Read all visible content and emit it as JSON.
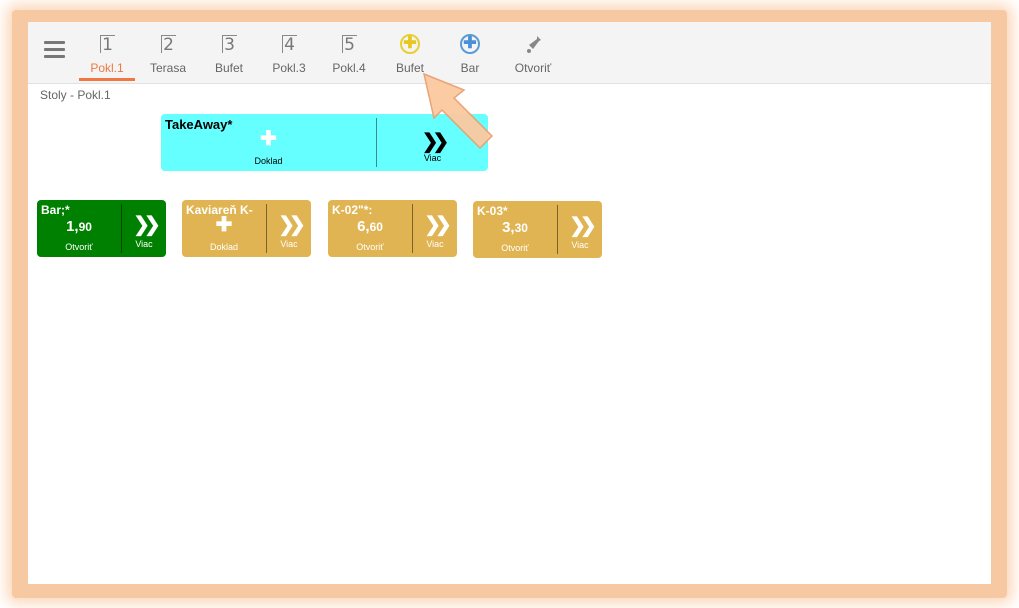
{
  "toolbar": {
    "tabs": [
      {
        "icon": "1",
        "label": "Pokl.1",
        "active": true
      },
      {
        "icon": "2",
        "label": "Terasa"
      },
      {
        "icon": "3",
        "label": "Bufet"
      },
      {
        "icon": "4",
        "label": "Pokl.3"
      },
      {
        "icon": "5",
        "label": "Pokl.4"
      },
      {
        "icon": "plus-circle-yellow",
        "label": "Bufet"
      },
      {
        "icon": "plus-circle-blue",
        "label": "Bar"
      },
      {
        "icon": "bottle-icon",
        "label": "Otvoriť"
      }
    ]
  },
  "breadcrumb": "Stoly - Pokl.1",
  "takeaway": {
    "name": "TakeAway*",
    "action": "Doklad",
    "more": "Viac",
    "color": "#66ffff"
  },
  "tables": [
    {
      "name": "Bar;*",
      "amount_int": "1,",
      "amount_dec": "90",
      "action": "Otvoriť",
      "more": "Viac",
      "color": "#008000"
    },
    {
      "name": "Kaviareň K-",
      "action": "Doklad",
      "more": "Viac",
      "color": "#e0b452"
    },
    {
      "name": "K-02\"*:",
      "amount_int": "6,",
      "amount_dec": "60",
      "action": "Otvoriť",
      "more": "Viac",
      "color": "#e0b452"
    },
    {
      "name": "K-03*",
      "amount_int": "3,",
      "amount_dec": "30",
      "action": "Otvoriť",
      "more": "Viac",
      "color": "#e0b452"
    }
  ],
  "icons": {
    "plus": "✚",
    "chevrons": "❯❯"
  }
}
